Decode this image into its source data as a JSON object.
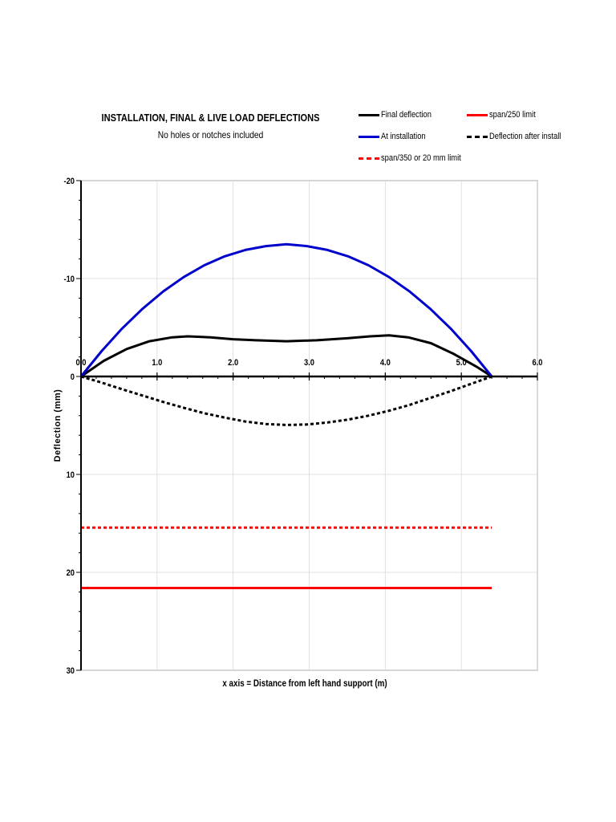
{
  "chart_data": {
    "type": "line",
    "title": "INSTALLATION, FINAL & LIVE LOAD DEFLECTIONS",
    "subtitle": "No holes or notches included",
    "xlabel": "x axis = Distance from left hand support (m)",
    "ylabel": "Deflection  (mm)",
    "xlim": [
      0,
      6
    ],
    "ylim": [
      30,
      -20
    ],
    "y_reversed": true,
    "grid": true,
    "legend_position": "top-right",
    "x_ticks": [
      0,
      1,
      2,
      3,
      4,
      5,
      6
    ],
    "x_tick_labels": [
      "0.0",
      "1.0",
      "2.0",
      "3.0",
      "4.0",
      "5.0",
      "6.0"
    ],
    "y_ticks": [
      -20,
      -10,
      0,
      10,
      20,
      30
    ],
    "y_tick_labels": [
      "-20",
      "-10",
      "0",
      "10",
      "20",
      "30"
    ],
    "series": [
      {
        "name": "Final deflection",
        "color": "#000000",
        "style": "solid",
        "x": [
          0,
          0.3,
          0.6,
          0.9,
          1.2,
          1.4,
          1.7,
          2.0,
          2.3,
          2.7,
          3.1,
          3.5,
          3.8,
          4.05,
          4.3,
          4.6,
          4.9,
          5.2,
          5.4
        ],
        "y": [
          0,
          -1.6,
          -2.8,
          -3.6,
          -4.0,
          -4.1,
          -4.0,
          -3.8,
          -3.7,
          -3.6,
          -3.7,
          -3.9,
          -4.1,
          -4.2,
          -4.0,
          -3.4,
          -2.3,
          -1.0,
          0
        ]
      },
      {
        "name": "At installation",
        "color": "#0000cc",
        "style": "solid",
        "x": [
          0,
          0.27,
          0.54,
          0.81,
          1.08,
          1.35,
          1.62,
          1.89,
          2.16,
          2.43,
          2.7,
          2.97,
          3.24,
          3.51,
          3.78,
          4.05,
          4.32,
          4.59,
          4.86,
          5.13,
          5.4
        ],
        "y": [
          0,
          -2.58,
          -4.89,
          -6.92,
          -8.68,
          -10.15,
          -11.35,
          -12.27,
          -12.92,
          -13.31,
          -13.5,
          -13.31,
          -12.92,
          -12.27,
          -11.35,
          -10.15,
          -8.68,
          -6.92,
          -4.89,
          -2.58,
          0
        ]
      },
      {
        "name": "Deflection after install",
        "color": "#000000",
        "style": "dashed",
        "x": [
          0,
          0.27,
          0.54,
          0.81,
          1.08,
          1.35,
          1.62,
          1.89,
          2.16,
          2.43,
          2.7,
          2.97,
          3.24,
          3.51,
          3.78,
          4.05,
          4.32,
          4.59,
          4.86,
          5.13,
          5.4
        ],
        "y": [
          0,
          0.62,
          1.3,
          1.95,
          2.6,
          3.2,
          3.75,
          4.2,
          4.6,
          4.85,
          4.95,
          4.9,
          4.7,
          4.4,
          4.0,
          3.5,
          2.9,
          2.2,
          1.5,
          0.75,
          0
        ]
      },
      {
        "name": "span/250 limit",
        "color": "#ff0000",
        "style": "solid",
        "x": [
          0,
          5.4
        ],
        "y": [
          21.6,
          21.6
        ]
      },
      {
        "name": "span/350 or 20 mm limit",
        "color": "#ff0000",
        "style": "dashed",
        "x": [
          0,
          5.4
        ],
        "y": [
          15.43,
          15.43
        ]
      }
    ]
  }
}
